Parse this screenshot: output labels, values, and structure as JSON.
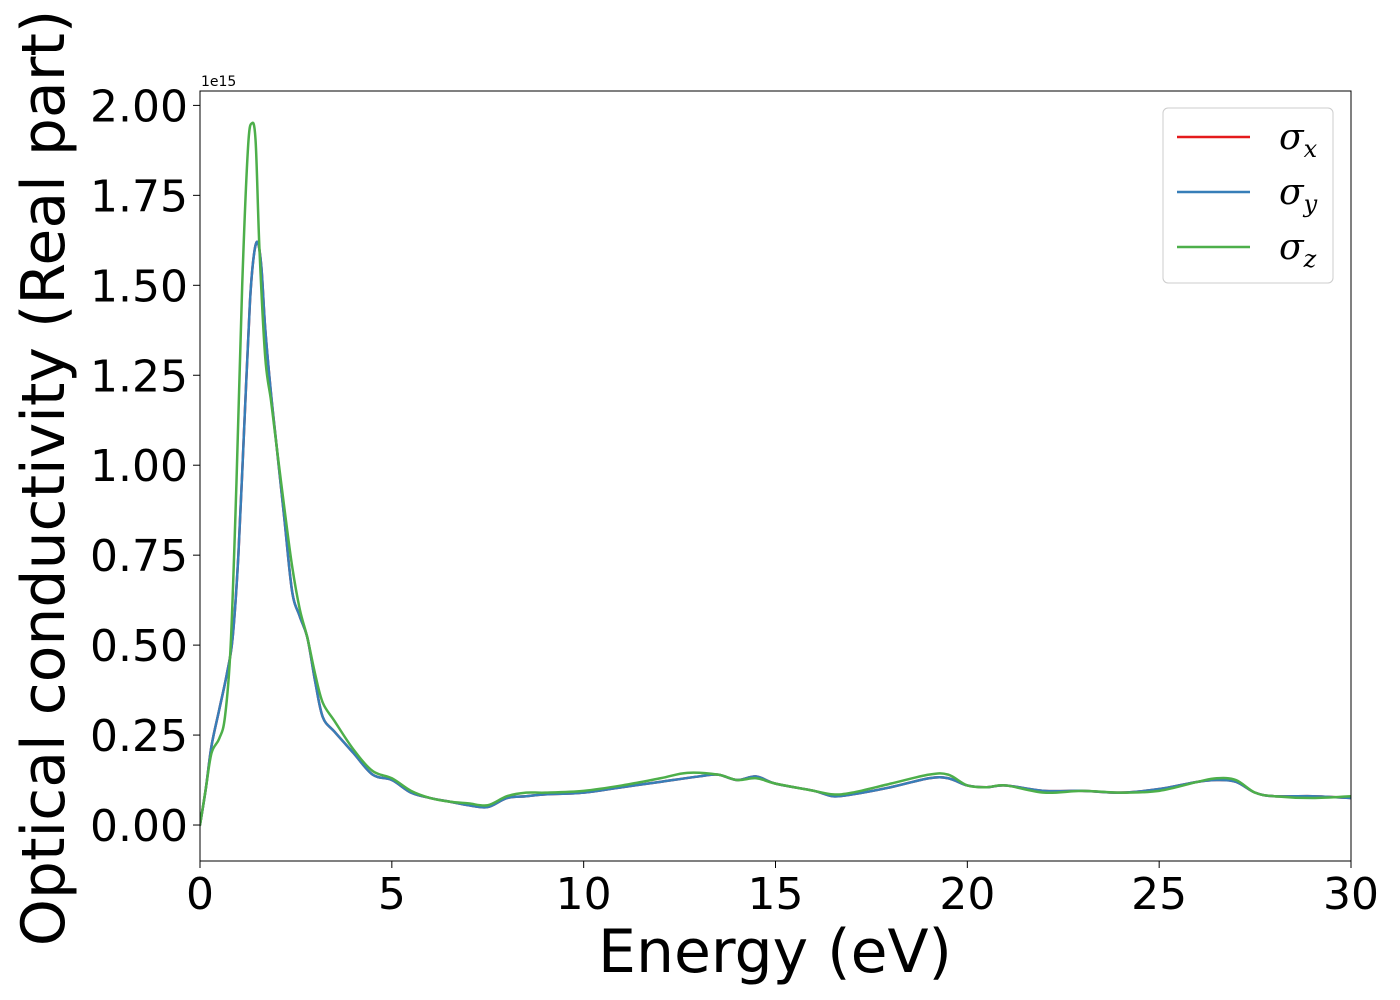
{
  "chart_data": {
    "type": "line",
    "xlabel": "Energy (eV)",
    "ylabel": "Optical conductivity (Real part)",
    "y_offset_label": "1e15",
    "xlim": [
      0,
      30
    ],
    "ylim": [
      -0.1,
      2.04
    ],
    "xticks": [
      0,
      5,
      10,
      15,
      20,
      25,
      30
    ],
    "xtick_labels": [
      "0",
      "5",
      "10",
      "15",
      "20",
      "25",
      "30"
    ],
    "yticks": [
      0,
      0.25,
      0.5,
      0.75,
      1.0,
      1.25,
      1.5,
      1.75,
      2.0
    ],
    "ytick_labels": [
      "0.00",
      "0.25",
      "0.50",
      "0.75",
      "1.00",
      "1.25",
      "1.50",
      "1.75",
      "2.00"
    ],
    "grid": false,
    "legend_position": "top-right",
    "series": [
      {
        "name": "σ_x",
        "label_base": "σ",
        "label_sub": "x",
        "color": "#e41a1c",
        "x": [
          0,
          0.15,
          0.3,
          0.5,
          0.7,
          0.85,
          1.0,
          1.15,
          1.3,
          1.4,
          1.5,
          1.6,
          1.7,
          1.85,
          2.0,
          2.2,
          2.4,
          2.6,
          2.8,
          3.0,
          3.2,
          3.5,
          4.0,
          4.5,
          5.0,
          5.5,
          6.0,
          6.5,
          7.0,
          7.5,
          8.0,
          8.5,
          9.0,
          10.0,
          11.0,
          12.0,
          13.0,
          13.5,
          14.0,
          14.5,
          15.0,
          16.0,
          16.5,
          17.0,
          18.0,
          19.0,
          19.5,
          20.0,
          20.5,
          21.0,
          22.0,
          23.0,
          24.0,
          25.0,
          26.0,
          26.5,
          27.0,
          27.5,
          28.0,
          29.0,
          30.0
        ],
        "y": [
          0.0,
          0.1,
          0.22,
          0.32,
          0.42,
          0.52,
          0.75,
          1.1,
          1.45,
          1.58,
          1.62,
          1.55,
          1.38,
          1.2,
          1.05,
          0.85,
          0.65,
          0.58,
          0.52,
          0.4,
          0.3,
          0.26,
          0.2,
          0.14,
          0.125,
          0.09,
          0.075,
          0.065,
          0.055,
          0.05,
          0.075,
          0.08,
          0.085,
          0.09,
          0.105,
          0.12,
          0.135,
          0.14,
          0.125,
          0.135,
          0.115,
          0.095,
          0.08,
          0.085,
          0.105,
          0.13,
          0.13,
          0.11,
          0.105,
          0.11,
          0.095,
          0.095,
          0.09,
          0.1,
          0.12,
          0.125,
          0.12,
          0.09,
          0.08,
          0.08,
          0.075
        ]
      },
      {
        "name": "σ_y",
        "label_base": "σ",
        "label_sub": "y",
        "color": "#377eb8",
        "x": [
          0,
          0.15,
          0.3,
          0.5,
          0.7,
          0.85,
          1.0,
          1.15,
          1.3,
          1.4,
          1.5,
          1.6,
          1.7,
          1.85,
          2.0,
          2.2,
          2.4,
          2.6,
          2.8,
          3.0,
          3.2,
          3.5,
          4.0,
          4.5,
          5.0,
          5.5,
          6.0,
          6.5,
          7.0,
          7.5,
          8.0,
          8.5,
          9.0,
          10.0,
          11.0,
          12.0,
          13.0,
          13.5,
          14.0,
          14.5,
          15.0,
          16.0,
          16.5,
          17.0,
          18.0,
          19.0,
          19.5,
          20.0,
          20.5,
          21.0,
          22.0,
          23.0,
          24.0,
          25.0,
          26.0,
          26.5,
          27.0,
          27.5,
          28.0,
          29.0,
          30.0
        ],
        "y": [
          0.0,
          0.1,
          0.22,
          0.32,
          0.42,
          0.52,
          0.75,
          1.1,
          1.45,
          1.58,
          1.62,
          1.55,
          1.38,
          1.2,
          1.05,
          0.85,
          0.65,
          0.58,
          0.52,
          0.4,
          0.3,
          0.26,
          0.2,
          0.14,
          0.125,
          0.09,
          0.075,
          0.065,
          0.055,
          0.05,
          0.075,
          0.08,
          0.085,
          0.09,
          0.105,
          0.12,
          0.135,
          0.14,
          0.125,
          0.135,
          0.115,
          0.095,
          0.08,
          0.085,
          0.105,
          0.13,
          0.13,
          0.11,
          0.105,
          0.11,
          0.095,
          0.095,
          0.09,
          0.1,
          0.12,
          0.125,
          0.12,
          0.09,
          0.08,
          0.08,
          0.075
        ]
      },
      {
        "name": "σ_z",
        "label_base": "σ",
        "label_sub": "z",
        "color": "#4daf4a",
        "x": [
          0,
          0.15,
          0.3,
          0.5,
          0.65,
          0.8,
          0.95,
          1.1,
          1.25,
          1.35,
          1.45,
          1.55,
          1.7,
          1.85,
          2.0,
          2.2,
          2.4,
          2.6,
          2.8,
          3.0,
          3.2,
          3.5,
          4.0,
          4.5,
          5.0,
          5.5,
          6.0,
          6.5,
          7.0,
          7.5,
          8.0,
          8.5,
          9.0,
          10.0,
          11.0,
          12.0,
          12.7,
          13.5,
          14.0,
          14.5,
          15.0,
          16.0,
          16.5,
          17.0,
          18.0,
          19.0,
          19.5,
          20.0,
          20.5,
          21.0,
          22.0,
          23.0,
          24.0,
          25.0,
          26.0,
          26.5,
          27.0,
          27.5,
          28.0,
          29.0,
          30.0
        ],
        "y": [
          0.0,
          0.1,
          0.2,
          0.24,
          0.3,
          0.5,
          0.95,
          1.5,
          1.88,
          1.95,
          1.9,
          1.6,
          1.3,
          1.18,
          1.05,
          0.88,
          0.72,
          0.6,
          0.52,
          0.42,
          0.34,
          0.29,
          0.21,
          0.15,
          0.13,
          0.095,
          0.075,
          0.065,
          0.06,
          0.055,
          0.08,
          0.09,
          0.09,
          0.095,
          0.11,
          0.13,
          0.145,
          0.14,
          0.125,
          0.13,
          0.115,
          0.095,
          0.085,
          0.09,
          0.115,
          0.14,
          0.14,
          0.11,
          0.105,
          0.11,
          0.09,
          0.095,
          0.09,
          0.095,
          0.12,
          0.13,
          0.125,
          0.09,
          0.08,
          0.075,
          0.08
        ]
      }
    ]
  }
}
